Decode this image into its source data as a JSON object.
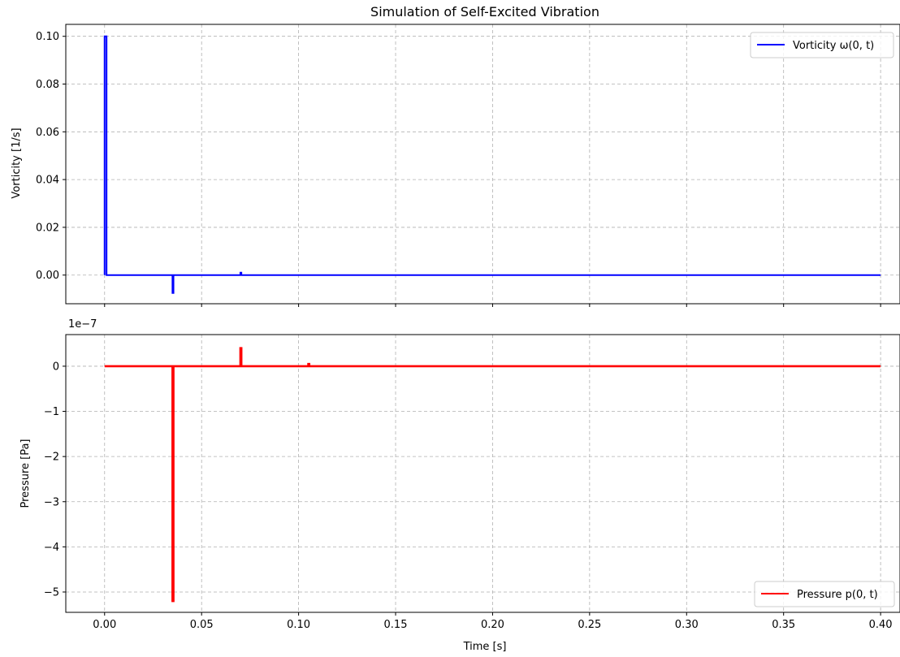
{
  "chart_data": [
    {
      "type": "line",
      "title": "Simulation of Self-Excited Vibration",
      "xlabel": "",
      "ylabel": "Vorticity [1/s]",
      "xlim": [
        -0.02,
        0.41
      ],
      "ylim": [
        -0.012,
        0.105
      ],
      "xticks": [
        0.0,
        0.05,
        0.1,
        0.15,
        0.2,
        0.25,
        0.3,
        0.35,
        0.4
      ],
      "yticks": [
        0.0,
        0.02,
        0.04,
        0.06,
        0.08,
        0.1
      ],
      "ytick_labels": [
        "0.00",
        "0.02",
        "0.04",
        "0.06",
        "0.08",
        "0.10"
      ],
      "grid": true,
      "legend_position": "top-right",
      "color": "#0000ff",
      "series": [
        {
          "name": "Vorticity ω(0, t)",
          "x": [
            0.0,
            0.0,
            0.001,
            0.001,
            0.035,
            0.035,
            0.0355,
            0.0355,
            0.07,
            0.07,
            0.0705,
            0.0705,
            0.4
          ],
          "y": [
            0.0,
            0.1,
            0.1,
            0.0,
            0.0,
            -0.0075,
            -0.0075,
            0.0,
            0.0,
            0.001,
            0.001,
            0.0,
            0.0
          ]
        }
      ]
    },
    {
      "type": "line",
      "title": "",
      "xlabel": "Time [s]",
      "ylabel": "Pressure [Pa]",
      "offset_text": "1e−7",
      "xlim": [
        -0.02,
        0.41
      ],
      "ylim": [
        -5.45,
        0.7
      ],
      "xticks": [
        0.0,
        0.05,
        0.1,
        0.15,
        0.2,
        0.25,
        0.3,
        0.35,
        0.4
      ],
      "xtick_labels": [
        "0.00",
        "0.05",
        "0.10",
        "0.15",
        "0.20",
        "0.25",
        "0.30",
        "0.35",
        "0.40"
      ],
      "yticks": [
        -5,
        -4,
        -3,
        -2,
        -1,
        0
      ],
      "ytick_labels": [
        "−5",
        "−4",
        "−3",
        "−2",
        "−1",
        "0"
      ],
      "grid": true,
      "legend_position": "bottom-right",
      "color": "#ff0000",
      "series": [
        {
          "name": "Pressure p(0, t)",
          "x": [
            0.0,
            0.035,
            0.035,
            0.0355,
            0.0355,
            0.07,
            0.07,
            0.0705,
            0.0705,
            0.105,
            0.105,
            0.1055,
            0.1055,
            0.4
          ],
          "y": [
            0.0,
            0.0,
            -5.2,
            -5.2,
            0.0,
            0.0,
            0.4,
            0.4,
            0.0,
            0.0,
            0.05,
            0.05,
            0.0,
            0.0
          ]
        }
      ]
    }
  ]
}
